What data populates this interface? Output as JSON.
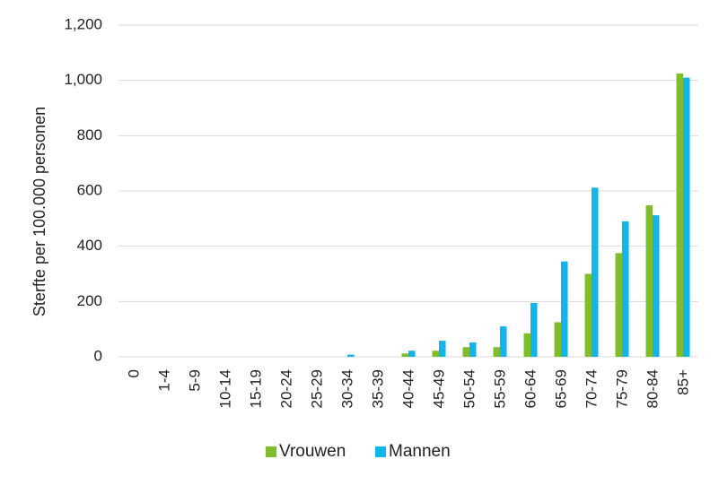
{
  "chart_data": {
    "type": "bar",
    "title": "",
    "xlabel": "",
    "ylabel": "Sterfte per 100.000 personen",
    "ylim": [
      0,
      1200
    ],
    "yticks": [
      0,
      200,
      400,
      600,
      800,
      1000,
      1200
    ],
    "ytick_labels": [
      "0",
      "200",
      "400",
      "600",
      "800",
      "1,000",
      "1,200"
    ],
    "grid": true,
    "legend_position": "bottom",
    "categories": [
      "0",
      "1-4",
      "5-9",
      "10-14",
      "15-19",
      "20-24",
      "25-29",
      "30-34",
      "35-39",
      "40-44",
      "45-49",
      "50-54",
      "55-59",
      "60-64",
      "65-69",
      "70-74",
      "75-79",
      "80-84",
      "85+"
    ],
    "series": [
      {
        "name": "Vrouwen",
        "color": "#80bc2b",
        "values": [
          0,
          0,
          0,
          0,
          0,
          0,
          0,
          0,
          0,
          12,
          22,
          35,
          35,
          85,
          125,
          300,
          375,
          548,
          1025
        ]
      },
      {
        "name": "Mannen",
        "color": "#12b4ea",
        "values": [
          0,
          0,
          0,
          0,
          0,
          0,
          0,
          8,
          0,
          22,
          58,
          52,
          110,
          195,
          345,
          612,
          490,
          512,
          1010
        ]
      }
    ]
  }
}
